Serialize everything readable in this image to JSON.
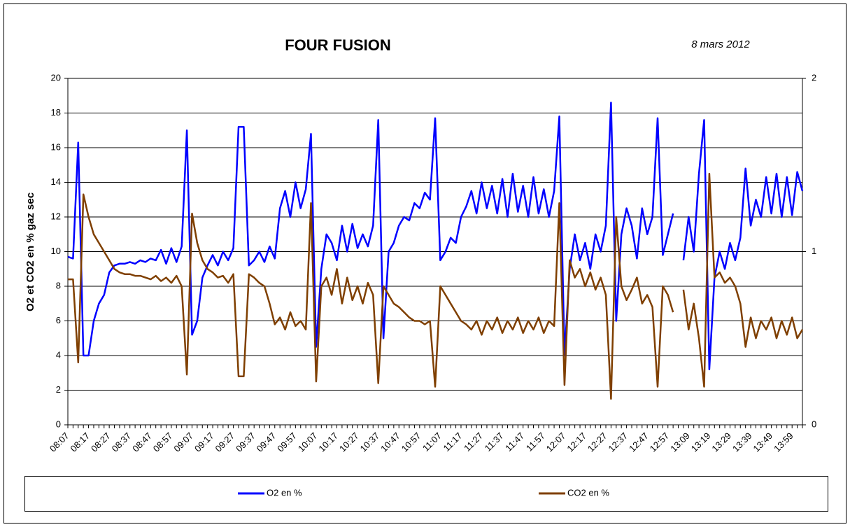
{
  "chart_data": {
    "type": "line",
    "title": "FOUR FUSION",
    "subtitle": "8 mars 2012",
    "y_label": "O2 et CO2 en % gaz sec",
    "categories": [
      "08:07",
      null,
      null,
      null,
      "08:17",
      null,
      null,
      null,
      "08:27",
      null,
      null,
      null,
      "08:37",
      null,
      null,
      null,
      "08:47",
      null,
      null,
      null,
      "08:57",
      null,
      null,
      null,
      "09:07",
      null,
      null,
      null,
      "09:17",
      null,
      null,
      null,
      "09:27",
      null,
      null,
      null,
      "09:37",
      null,
      null,
      null,
      "09:47",
      null,
      null,
      null,
      "09:57",
      null,
      null,
      null,
      "10:07",
      null,
      null,
      null,
      "10:17",
      null,
      null,
      null,
      "10:27",
      null,
      null,
      null,
      "10:37",
      null,
      null,
      null,
      "10:47",
      null,
      null,
      null,
      "10:57",
      null,
      null,
      null,
      "11:07",
      null,
      null,
      null,
      "11:17",
      null,
      null,
      null,
      "11:27",
      null,
      null,
      null,
      "11:37",
      null,
      null,
      null,
      "11:47",
      null,
      null,
      null,
      "11:57",
      null,
      null,
      null,
      "12:07",
      null,
      null,
      null,
      "12:17",
      null,
      null,
      null,
      "12:27",
      null,
      null,
      null,
      "12:37",
      null,
      null,
      null,
      "12:47",
      null,
      null,
      null,
      "12:57",
      null,
      null,
      null,
      "13:09",
      null,
      null,
      null,
      "13:19",
      null,
      null,
      null,
      "13:29",
      null,
      null,
      null,
      "13:39",
      null,
      null,
      null,
      "13:49",
      null,
      null,
      null,
      "13:59",
      null,
      null
    ],
    "series": [
      {
        "name": "O2 en %",
        "color": "#0000ff",
        "axis": "y",
        "values": [
          9.7,
          9.6,
          16.3,
          4,
          4,
          6,
          7,
          7.5,
          8.8,
          9.2,
          9.3,
          9.3,
          9.4,
          9.3,
          9.5,
          9.4,
          9.6,
          9.5,
          10.1,
          9.3,
          10.2,
          9.4,
          10.3,
          17,
          5.2,
          6,
          8.5,
          9.2,
          9.8,
          9.2,
          10,
          9.5,
          10.2,
          17.2,
          17.2,
          9.2,
          9.5,
          10,
          9.4,
          10.3,
          9.6,
          12.5,
          13.5,
          12,
          14,
          12.5,
          13.6,
          16.8,
          4.5,
          9,
          11,
          10.5,
          9.5,
          11.5,
          10,
          11.6,
          10.2,
          11,
          10.3,
          11.5,
          17.6,
          5,
          10,
          10.5,
          11.5,
          12,
          11.8,
          12.8,
          12.5,
          13.4,
          13,
          17.7,
          9.5,
          10,
          10.8,
          10.5,
          12,
          12.6,
          13.5,
          12.2,
          14,
          12.5,
          13.8,
          12.2,
          14.2,
          12,
          14.5,
          12.3,
          13.8,
          12,
          14.3,
          12.2,
          13.6,
          12,
          13.5,
          17.8,
          4,
          9,
          11,
          9.5,
          10.5,
          9,
          11,
          10,
          11.5,
          18.6,
          6,
          11,
          12.5,
          11.5,
          9.6,
          12.5,
          11,
          12,
          17.7,
          9.8,
          11,
          12.2,
          null,
          9.5,
          12,
          10,
          14.5,
          17.6,
          3.2,
          8.5,
          10,
          9,
          10.5,
          9.5,
          10.8,
          14.8,
          11.5,
          13,
          12,
          14.3,
          12.2,
          14.5,
          12,
          14.3,
          12.1,
          14.6,
          13.5
        ]
      },
      {
        "name": "CO2 en %",
        "color": "#7f3f00",
        "axis": "y2",
        "values": [
          0.84,
          0.84,
          0.36,
          1.33,
          1.2,
          1.1,
          1.05,
          1.0,
          0.95,
          0.9,
          0.88,
          0.87,
          0.87,
          0.86,
          0.86,
          0.85,
          0.84,
          0.86,
          0.83,
          0.85,
          0.82,
          0.86,
          0.8,
          0.29,
          1.22,
          1.05,
          0.95,
          0.9,
          0.88,
          0.85,
          0.86,
          0.82,
          0.87,
          0.28,
          0.28,
          0.87,
          0.85,
          0.82,
          0.8,
          0.7,
          0.58,
          0.62,
          0.55,
          0.65,
          0.57,
          0.6,
          0.55,
          1.28,
          0.25,
          0.8,
          0.85,
          0.75,
          0.9,
          0.7,
          0.85,
          0.72,
          0.8,
          0.7,
          0.82,
          0.75,
          0.24,
          0.8,
          0.75,
          0.7,
          0.68,
          0.65,
          0.62,
          0.6,
          0.6,
          0.58,
          0.6,
          0.22,
          0.8,
          0.75,
          0.7,
          0.65,
          0.6,
          0.58,
          0.55,
          0.6,
          0.52,
          0.6,
          0.55,
          0.62,
          0.53,
          0.6,
          0.55,
          0.62,
          0.53,
          0.6,
          0.55,
          0.62,
          0.53,
          0.6,
          0.57,
          1.28,
          0.23,
          0.95,
          0.85,
          0.9,
          0.8,
          0.88,
          0.78,
          0.85,
          0.75,
          0.15,
          1.2,
          0.8,
          0.72,
          0.78,
          0.85,
          0.7,
          0.75,
          0.68,
          0.22,
          0.8,
          0.75,
          0.65,
          null,
          0.78,
          0.55,
          0.7,
          0.5,
          0.22,
          1.45,
          0.85,
          0.88,
          0.82,
          0.85,
          0.8,
          0.7,
          0.45,
          0.62,
          0.5,
          0.6,
          0.55,
          0.62,
          0.5,
          0.6,
          0.52,
          0.62,
          0.5,
          0.55
        ]
      }
    ],
    "ylim": [
      0,
      20
    ],
    "yticks": [
      0,
      2,
      4,
      6,
      8,
      10,
      12,
      14,
      16,
      18,
      20
    ],
    "y2lim": [
      0,
      2
    ],
    "y2ticks": [
      0,
      1,
      2
    ],
    "grid": true,
    "legend": "bottom"
  }
}
